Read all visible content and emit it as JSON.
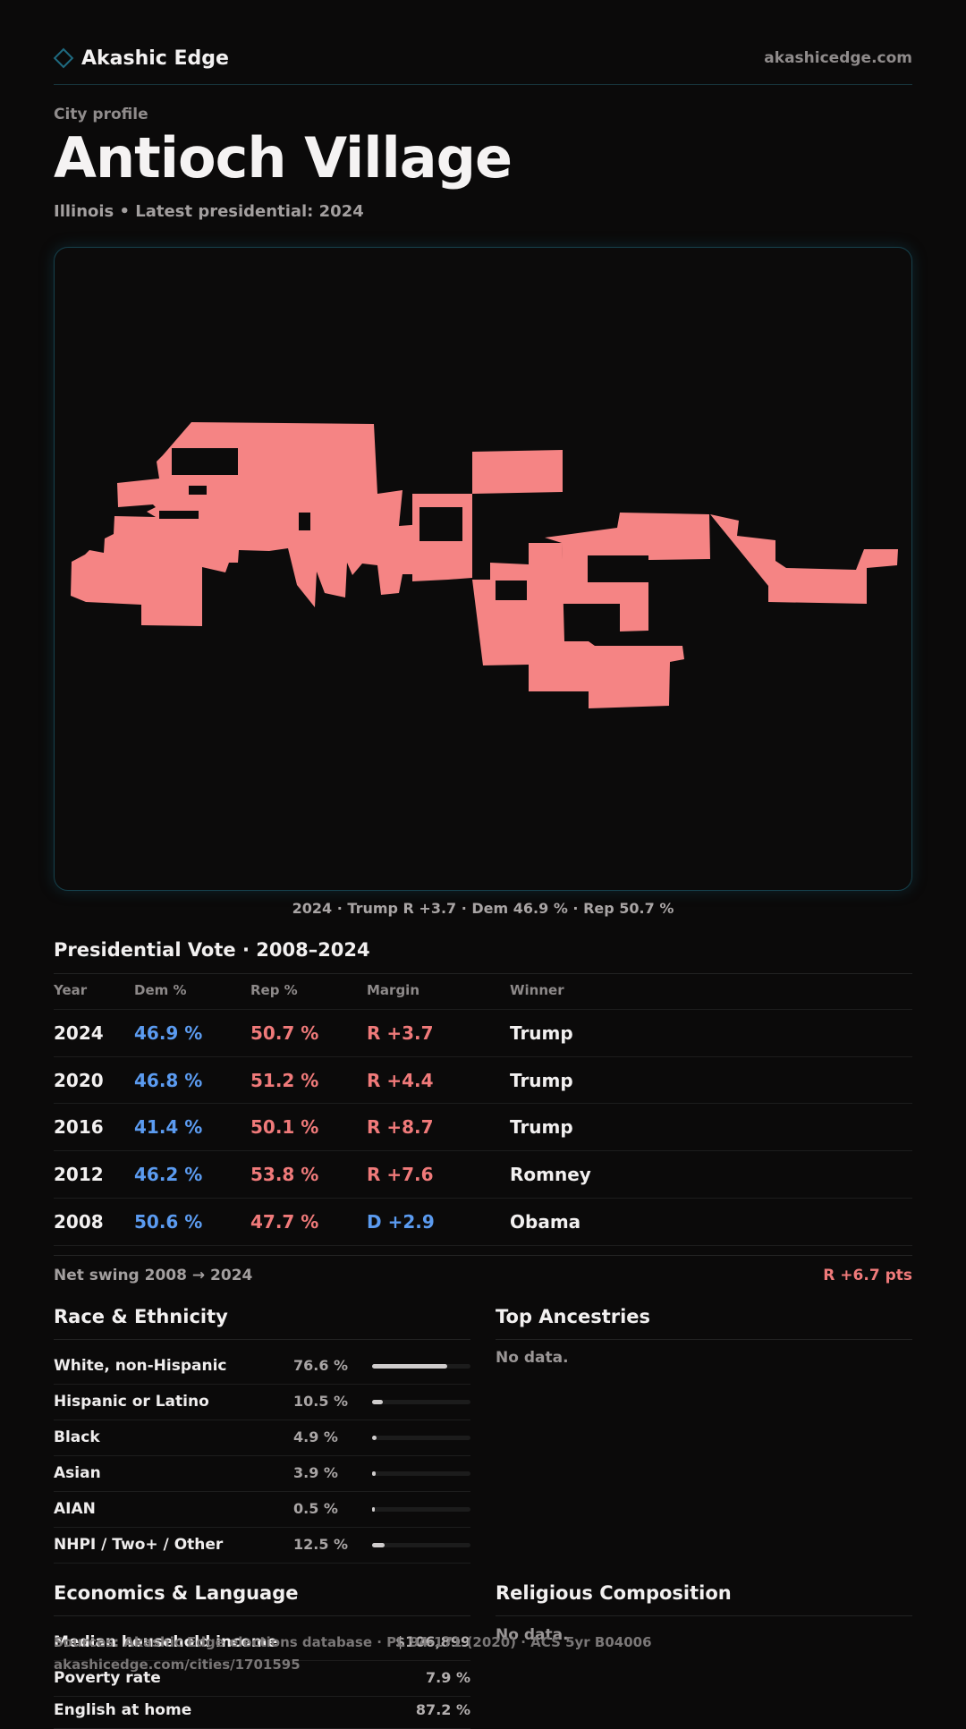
{
  "header": {
    "brand": "Akashic Edge",
    "site": "akashicedge.com"
  },
  "profile": {
    "eyebrow": "City profile",
    "title": "Antioch Village",
    "subtitle": "Illinois • Latest presidential: 2024"
  },
  "map": {
    "caption": "2024 · Trump R +3.7 · Dem 46.9 % · Rep 50.7 %",
    "fill_color": "#f58484"
  },
  "votes": {
    "title": "Presidential Vote · 2008–2024",
    "columns": [
      "Year",
      "Dem %",
      "Rep %",
      "Margin",
      "Winner"
    ],
    "rows": [
      {
        "year": "2024",
        "dem": "46.9 %",
        "rep": "50.7 %",
        "margin": "R +3.7",
        "winner": "Trump"
      },
      {
        "year": "2020",
        "dem": "46.8 %",
        "rep": "51.2 %",
        "margin": "R +4.4",
        "winner": "Trump"
      },
      {
        "year": "2016",
        "dem": "41.4 %",
        "rep": "50.1 %",
        "margin": "R +8.7",
        "winner": "Trump"
      },
      {
        "year": "2012",
        "dem": "46.2 %",
        "rep": "53.8 %",
        "margin": "R +7.6",
        "winner": "Romney"
      },
      {
        "year": "2008",
        "dem": "50.6 %",
        "rep": "47.7 %",
        "margin": "D +2.9",
        "winner": "Obama"
      }
    ],
    "swing_label": "Net swing 2008 → 2024",
    "swing_value": "R +6.7 pts"
  },
  "race": {
    "title": "Race & Ethnicity",
    "rows": [
      {
        "label": "White, non-Hispanic",
        "pct": "76.6 %",
        "share": 0.766
      },
      {
        "label": "Hispanic or Latino",
        "pct": "10.5 %",
        "share": 0.105
      },
      {
        "label": "Black",
        "pct": "4.9 %",
        "share": 0.049
      },
      {
        "label": "Asian",
        "pct": "3.9 %",
        "share": 0.039
      },
      {
        "label": "AIAN",
        "pct": "0.5 %",
        "share": 0.005
      },
      {
        "label": "NHPI / Two+ / Other",
        "pct": "12.5 %",
        "share": 0.125
      }
    ]
  },
  "ancestries": {
    "title": "Top Ancestries",
    "empty": "No data."
  },
  "economics": {
    "title": "Economics & Language",
    "rows": [
      {
        "label": "Median household income",
        "value": "$106,899"
      },
      {
        "label": "Poverty rate",
        "value": "7.9 %"
      },
      {
        "label": "English at home",
        "value": "87.2 %"
      }
    ]
  },
  "religion": {
    "title": "Religious Composition",
    "empty": "No data."
  },
  "footer": {
    "sources": "Sources: Akashic Edge elections database · PL 94-171 (2020) · ACS 5yr B04006",
    "url": "akashicedge.com/cities/1701595"
  }
}
